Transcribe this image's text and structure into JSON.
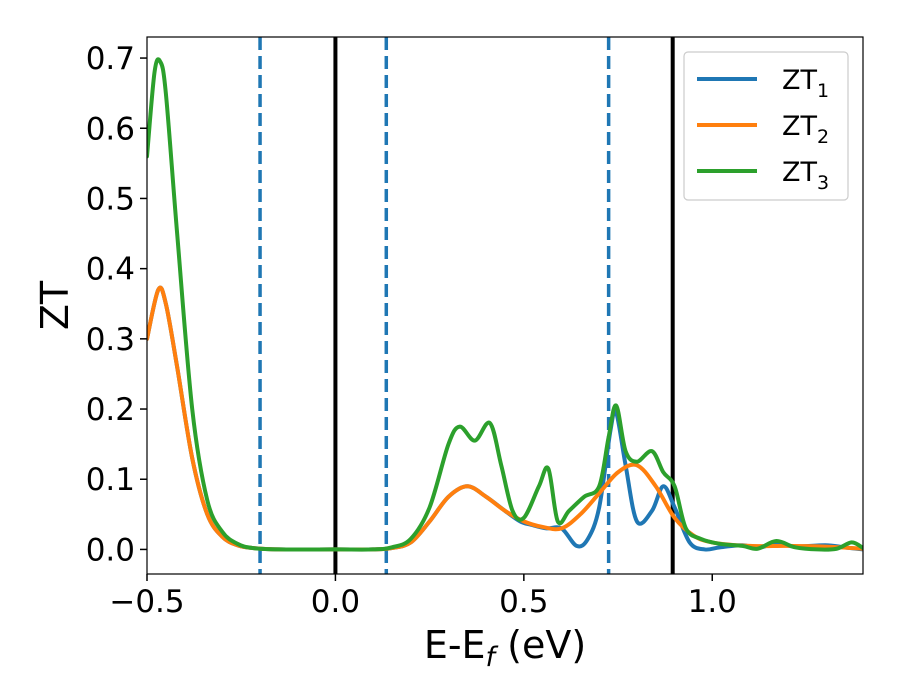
{
  "chart_data": {
    "type": "line",
    "xlabel": "E-E",
    "xlabel_sub": "f",
    "xlabel_unit": " (eV)",
    "ylabel": "ZT",
    "xlim": [
      -0.5,
      1.4
    ],
    "ylim": [
      -0.035,
      0.73
    ],
    "grid": false,
    "legend_position": "top-right",
    "x_ticks": [
      -0.5,
      0.0,
      0.5,
      1.0
    ],
    "x_tick_labels": [
      "−0.5",
      "0.0",
      "0.5",
      "1.0"
    ],
    "y_ticks": [
      0.0,
      0.1,
      0.2,
      0.3,
      0.4,
      0.5,
      0.6,
      0.7
    ],
    "y_tick_labels": [
      "0.0",
      "0.1",
      "0.2",
      "0.3",
      "0.4",
      "0.5",
      "0.6",
      "0.7"
    ],
    "vertical_lines": [
      {
        "x": -0.2,
        "style": "dashed",
        "color": "#1f77b4"
      },
      {
        "x": 0.0,
        "style": "solid",
        "color": "#000000"
      },
      {
        "x": 0.135,
        "style": "dashed",
        "color": "#1f77b4"
      },
      {
        "x": 0.725,
        "style": "dashed",
        "color": "#1f77b4"
      },
      {
        "x": 0.895,
        "style": "solid",
        "color": "#000000"
      }
    ],
    "series": [
      {
        "name": "ZT",
        "name_sub": "1",
        "color": "#1f77b4",
        "x": [
          -0.5,
          -0.47,
          -0.45,
          -0.42,
          -0.38,
          -0.34,
          -0.3,
          -0.26,
          -0.22,
          -0.15,
          0.0,
          0.1,
          0.15,
          0.2,
          0.25,
          0.3,
          0.35,
          0.4,
          0.45,
          0.49,
          0.52,
          0.56,
          0.6,
          0.64,
          0.67,
          0.7,
          0.73,
          0.745,
          0.77,
          0.8,
          0.84,
          0.87,
          0.9,
          0.94,
          0.98,
          1.02,
          1.08,
          1.12,
          1.17,
          1.22,
          1.3,
          1.35,
          1.4
        ],
        "y": [
          0.3,
          0.37,
          0.35,
          0.26,
          0.13,
          0.05,
          0.018,
          0.006,
          0.002,
          0.0,
          0.0,
          0.0,
          0.002,
          0.01,
          0.04,
          0.075,
          0.09,
          0.075,
          0.055,
          0.04,
          0.035,
          0.03,
          0.03,
          0.005,
          0.015,
          0.06,
          0.17,
          0.195,
          0.12,
          0.04,
          0.055,
          0.09,
          0.06,
          0.01,
          0.0,
          0.003,
          0.006,
          0.002,
          0.008,
          0.004,
          0.006,
          0.003,
          0.0
        ]
      },
      {
        "name": "ZT",
        "name_sub": "2",
        "color": "#ff7f0e",
        "x": [
          -0.5,
          -0.47,
          -0.45,
          -0.42,
          -0.38,
          -0.34,
          -0.3,
          -0.26,
          -0.22,
          -0.15,
          0.0,
          0.1,
          0.15,
          0.2,
          0.25,
          0.3,
          0.35,
          0.4,
          0.45,
          0.5,
          0.55,
          0.6,
          0.65,
          0.7,
          0.75,
          0.8,
          0.85,
          0.9,
          0.95,
          1.0,
          1.1,
          1.2,
          1.3,
          1.4
        ],
        "y": [
          0.3,
          0.37,
          0.35,
          0.26,
          0.13,
          0.05,
          0.018,
          0.006,
          0.002,
          0.0,
          0.0,
          0.0,
          0.002,
          0.01,
          0.04,
          0.075,
          0.09,
          0.075,
          0.055,
          0.04,
          0.032,
          0.03,
          0.05,
          0.08,
          0.11,
          0.12,
          0.09,
          0.045,
          0.02,
          0.01,
          0.005,
          0.005,
          0.004,
          0.001
        ]
      },
      {
        "name": "ZT",
        "name_sub": "3",
        "color": "#2ca02c",
        "x": [
          -0.5,
          -0.48,
          -0.465,
          -0.45,
          -0.42,
          -0.38,
          -0.34,
          -0.3,
          -0.26,
          -0.22,
          -0.15,
          0.0,
          0.1,
          0.15,
          0.2,
          0.25,
          0.3,
          0.33,
          0.37,
          0.41,
          0.44,
          0.47,
          0.5,
          0.54,
          0.565,
          0.59,
          0.62,
          0.66,
          0.7,
          0.725,
          0.745,
          0.77,
          0.8,
          0.84,
          0.87,
          0.9,
          0.93,
          0.97,
          1.02,
          1.08,
          1.12,
          1.17,
          1.22,
          1.28,
          1.33,
          1.37,
          1.4
        ],
        "y": [
          0.56,
          0.68,
          0.695,
          0.65,
          0.45,
          0.2,
          0.07,
          0.025,
          0.008,
          0.002,
          0.0,
          0.0,
          0.0,
          0.003,
          0.015,
          0.06,
          0.15,
          0.175,
          0.155,
          0.18,
          0.12,
          0.055,
          0.045,
          0.09,
          0.115,
          0.04,
          0.055,
          0.075,
          0.09,
          0.16,
          0.205,
          0.14,
          0.125,
          0.14,
          0.11,
          0.09,
          0.03,
          0.015,
          0.008,
          0.005,
          0.001,
          0.012,
          0.003,
          0.0,
          0.001,
          0.01,
          0.002
        ]
      }
    ]
  }
}
